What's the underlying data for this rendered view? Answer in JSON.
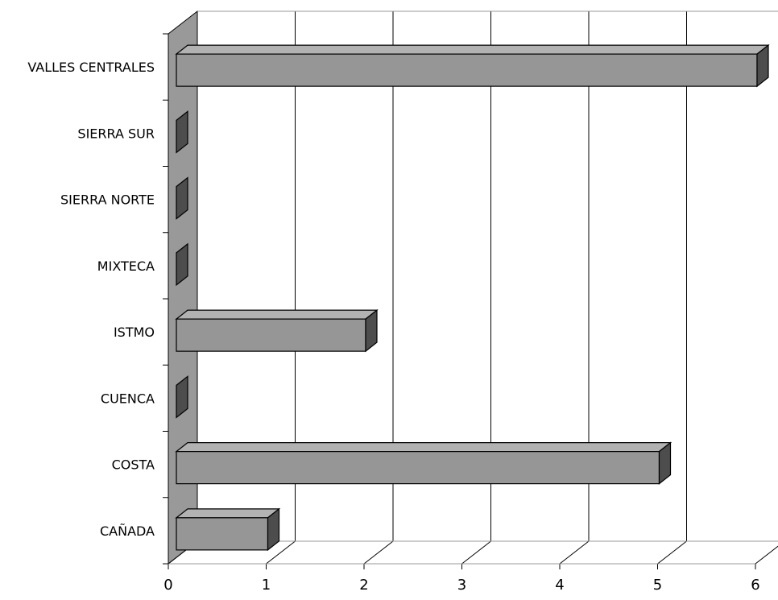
{
  "chart_data": {
    "type": "bar",
    "orientation": "horizontal",
    "style": "3d",
    "categories": [
      "CAÑADA",
      "COSTA",
      "CUENCA",
      "ISTMO",
      "MIXTECA",
      "SIERRA NORTE",
      "SIERRA SUR",
      "VALLES CENTRALES"
    ],
    "values": [
      1,
      5,
      0,
      2,
      0,
      0,
      0,
      6
    ],
    "xlim": [
      0,
      6
    ],
    "xticks": [
      "0",
      "1",
      "2",
      "3",
      "4",
      "5",
      "6"
    ],
    "grid": true,
    "legend": "none",
    "title": "",
    "xlabel": "",
    "ylabel": "",
    "colors": {
      "bar_front": "#969696",
      "bar_top": "#b2b2b2",
      "bar_side": "#4d4d4d",
      "wall": "#999999",
      "grid": "#000000"
    }
  }
}
